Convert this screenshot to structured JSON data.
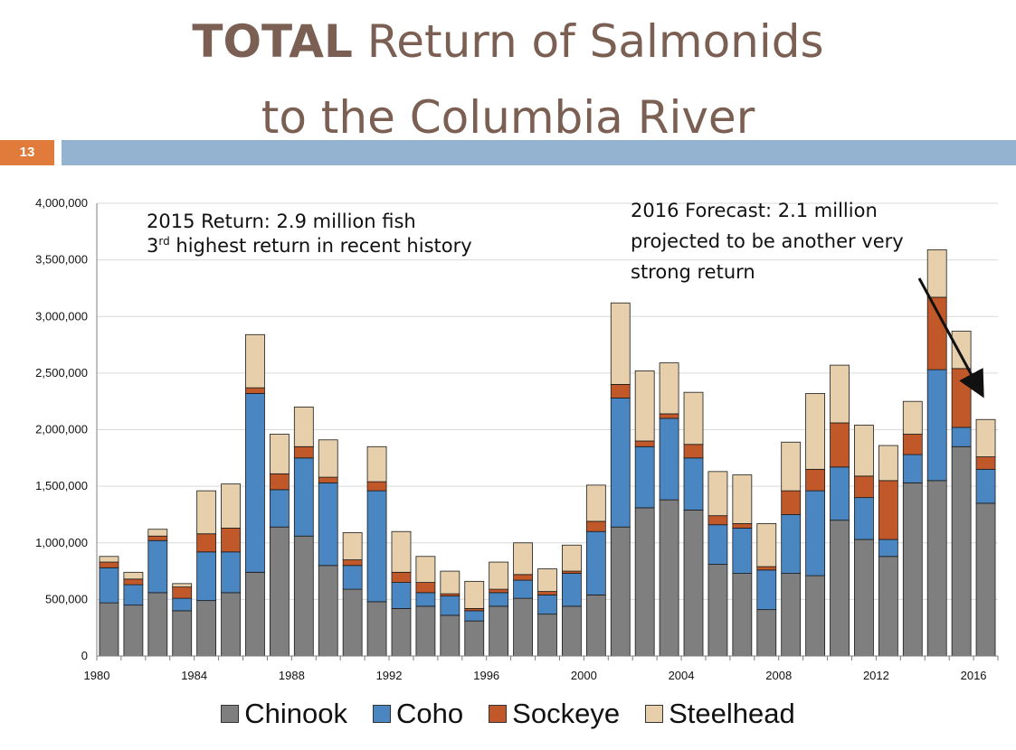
{
  "slide": {
    "title_bold": "TOTAL",
    "title_rest": " Return of Salmonids",
    "title_line2": "to the Columbia River",
    "number": "13"
  },
  "annotations": {
    "left_line1": "2015 Return: 2.9 million fish",
    "left_line2_prefix": "3",
    "left_line2_sup": "rd",
    "left_line2_rest": " highest return in recent history",
    "right_line1": "2016 Forecast: 2.1 million",
    "right_line2": "projected to be another very",
    "right_line3": "strong return"
  },
  "colors": {
    "Chinook": "#7f7f7f",
    "Coho": "#4a86c1",
    "Sockeye": "#c0582a",
    "Steelhead": "#e6cfaa",
    "title": "#7a5f52",
    "slide_number_bg": "#e07b3c",
    "rule_bar": "#93b3d1"
  },
  "chart_data": {
    "type": "bar",
    "stacked": true,
    "categories": [
      "1980",
      "1981",
      "1982",
      "1983",
      "1984",
      "1985",
      "1986",
      "1987",
      "1988",
      "1989",
      "1990",
      "1991",
      "1992",
      "1993",
      "1994",
      "1995",
      "1996",
      "1997",
      "1998",
      "1999",
      "2000",
      "2001",
      "2002",
      "2003",
      "2004",
      "2005",
      "2006",
      "2007",
      "2008",
      "2009",
      "2010",
      "2011",
      "2012",
      "2013",
      "2014",
      "2015",
      "2016"
    ],
    "x_tick_labels": [
      "1980",
      "1984",
      "1988",
      "1992",
      "1996",
      "2000",
      "2004",
      "2008",
      "2012",
      "2016"
    ],
    "ylim": [
      0,
      4000000
    ],
    "y_ticks": [
      0,
      500000,
      1000000,
      1500000,
      2000000,
      2500000,
      3000000,
      3500000,
      4000000
    ],
    "y_tick_labels": [
      "0",
      "500,000",
      "1,000,000",
      "1,500,000",
      "2,000,000",
      "2,500,000",
      "3,000,000",
      "3,500,000",
      "4,000,000"
    ],
    "grid": true,
    "legend_position": "bottom",
    "series": [
      {
        "name": "Chinook",
        "values": [
          470000,
          450000,
          560000,
          400000,
          490000,
          560000,
          740000,
          1140000,
          1060000,
          800000,
          590000,
          480000,
          420000,
          440000,
          360000,
          310000,
          440000,
          510000,
          370000,
          440000,
          540000,
          1140000,
          1310000,
          1380000,
          1290000,
          810000,
          730000,
          410000,
          730000,
          710000,
          1200000,
          1030000,
          880000,
          1530000,
          1550000,
          1850000,
          1350000
        ]
      },
      {
        "name": "Coho",
        "values": [
          310000,
          180000,
          460000,
          110000,
          430000,
          360000,
          1580000,
          330000,
          690000,
          730000,
          210000,
          980000,
          230000,
          120000,
          170000,
          90000,
          120000,
          160000,
          170000,
          290000,
          560000,
          1140000,
          540000,
          720000,
          460000,
          350000,
          400000,
          350000,
          520000,
          750000,
          470000,
          370000,
          150000,
          250000,
          980000,
          170000,
          300000
        ]
      },
      {
        "name": "Sockeye",
        "values": [
          50000,
          50000,
          40000,
          100000,
          160000,
          210000,
          50000,
          140000,
          100000,
          50000,
          50000,
          80000,
          90000,
          90000,
          20000,
          20000,
          30000,
          50000,
          30000,
          20000,
          90000,
          120000,
          50000,
          40000,
          120000,
          80000,
          40000,
          30000,
          210000,
          190000,
          390000,
          190000,
          520000,
          180000,
          640000,
          520000,
          110000
        ]
      },
      {
        "name": "Steelhead",
        "values": [
          50000,
          60000,
          60000,
          30000,
          380000,
          390000,
          470000,
          350000,
          350000,
          330000,
          240000,
          310000,
          360000,
          230000,
          200000,
          240000,
          240000,
          280000,
          200000,
          230000,
          320000,
          720000,
          620000,
          450000,
          460000,
          390000,
          430000,
          380000,
          430000,
          670000,
          510000,
          450000,
          310000,
          290000,
          420000,
          330000,
          330000
        ]
      }
    ]
  }
}
